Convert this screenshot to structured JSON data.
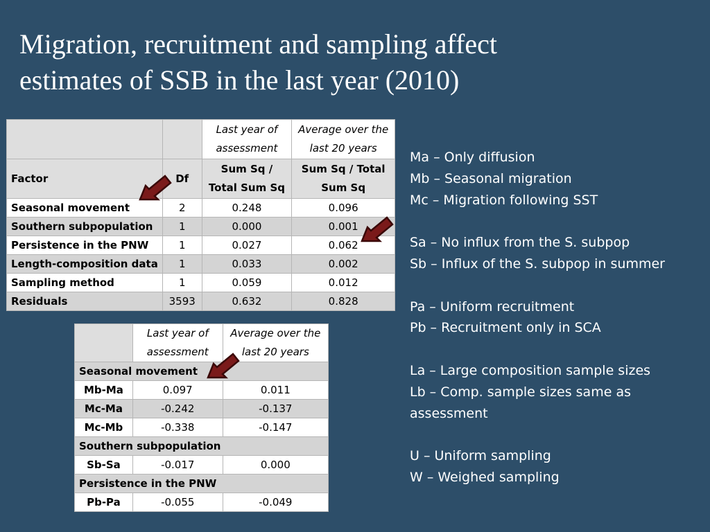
{
  "title": {
    "line1": "Migration, recruitment and sampling affect",
    "line2": "estimates of SSB in the last year (2010)"
  },
  "anova": {
    "col_last_year_top": "Last year of assessment",
    "col_avg_top": "Average over the last 20 years",
    "col_factor": "Factor",
    "col_df": "Df",
    "col_last_year_sub": "Sum Sq / Total Sum Sq",
    "col_avg_sub": "Sum Sq / Total Sum Sq",
    "rows": [
      {
        "factor": "Seasonal movement",
        "df": "2",
        "last": "0.248",
        "avg": "0.096"
      },
      {
        "factor": "Southern subpopulation",
        "df": "1",
        "last": "0.000",
        "avg": "0.001"
      },
      {
        "factor": "Persistence in the PNW",
        "df": "1",
        "last": "0.027",
        "avg": "0.062"
      },
      {
        "factor": "Length-composition data",
        "df": "1",
        "last": "0.033",
        "avg": "0.002"
      },
      {
        "factor": "Sampling method",
        "df": "1",
        "last": "0.059",
        "avg": "0.012"
      },
      {
        "factor": "Residuals",
        "df": "3593",
        "last": "0.632",
        "avg": "0.828"
      }
    ]
  },
  "contrast": {
    "col_last": "Last year of assessment",
    "col_avg": "Average over the last 20 years",
    "sections": [
      {
        "name": "Seasonal movement",
        "rows": [
          {
            "label": "Mb-Ma",
            "last": "0.097",
            "avg": "0.011"
          },
          {
            "label": "Mc-Ma",
            "last": "-0.242",
            "avg": "-0.137"
          },
          {
            "label": "Mc-Mb",
            "last": "-0.338",
            "avg": "-0.147"
          }
        ]
      },
      {
        "name": "Southern subpopulation",
        "rows": [
          {
            "label": "Sb-Sa",
            "last": "-0.017",
            "avg": "0.000"
          }
        ]
      },
      {
        "name": "Persistence in the PNW",
        "rows": [
          {
            "label": "Pb-Pa",
            "last": "-0.055",
            "avg": "-0.049"
          }
        ]
      }
    ]
  },
  "legend": {
    "ma": "Ma – Only diffusion",
    "mb": "Mb – Seasonal migration",
    "mc": "Mc – Migration following SST",
    "sa": "Sa – No influx from the S. subpop",
    "sb": "Sb – Influx of the S. subpop in summer",
    "pa": "Pa – Uniform recruitment",
    "pb": "Pb – Recruitment only in SCA",
    "la": "La – Large composition sample sizes",
    "lb1": "Lb – Comp. sample sizes same as",
    "lb2": "assessment",
    "u": "U – Uniform sampling",
    "w": "W – Weighed sampling"
  },
  "colors": {
    "background": "#2d4e69",
    "arrow_fill": "#7a1a1a",
    "arrow_stroke": "#3a0808"
  }
}
